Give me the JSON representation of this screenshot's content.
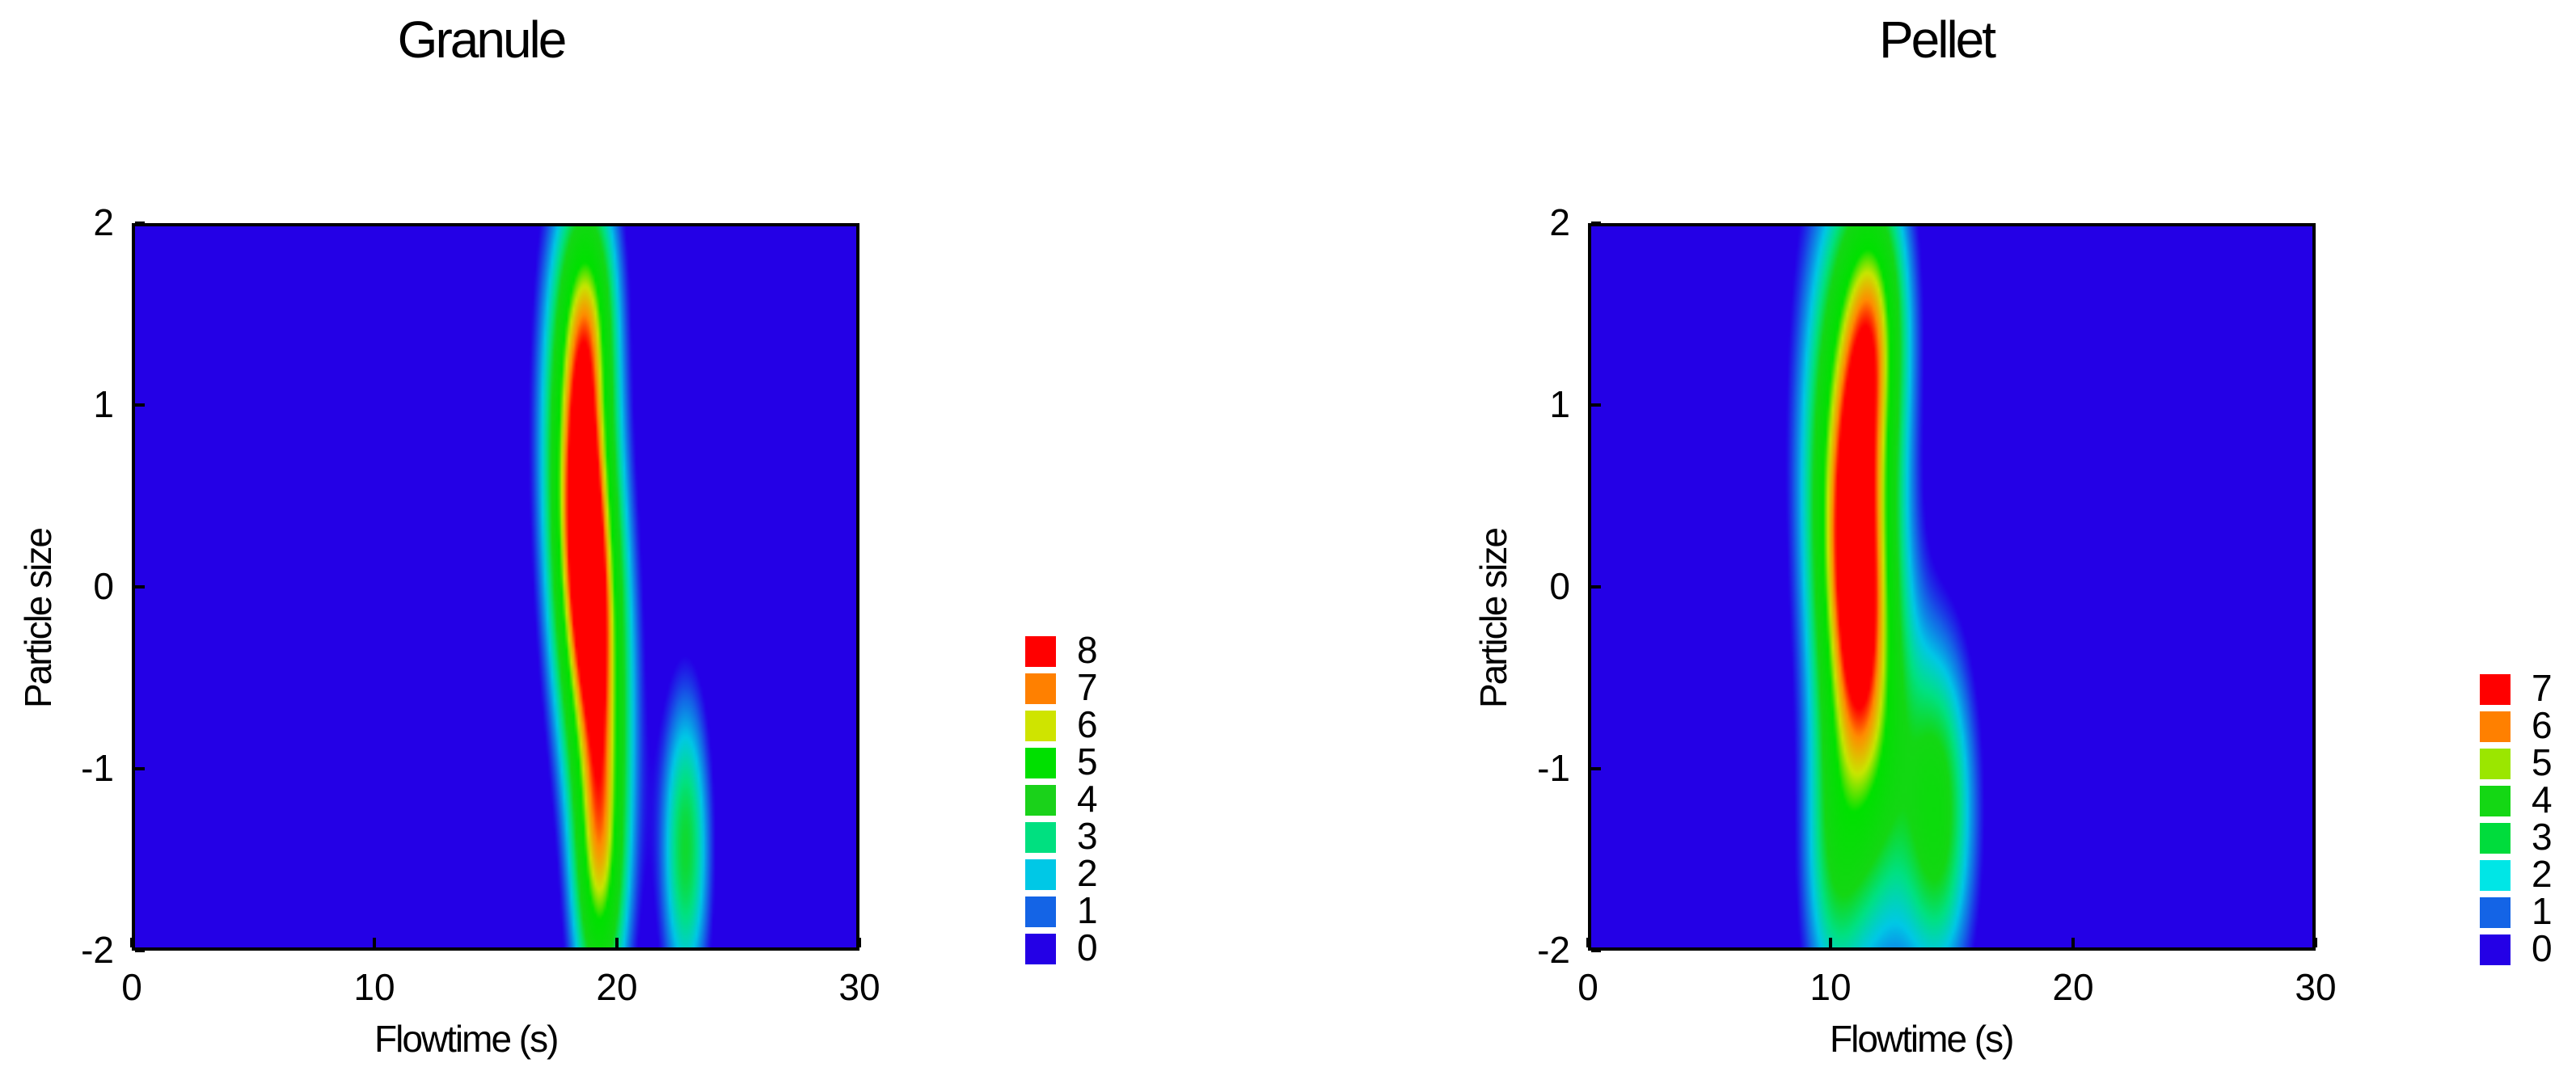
{
  "chart_data": [
    {
      "type": "heatmap",
      "title": "Granule",
      "xlabel": "Flowtime (s)",
      "ylabel": "Particle size",
      "xlim": [
        0,
        30
      ],
      "ylim": [
        -2,
        2
      ],
      "xticks": [
        "0",
        "10",
        "20",
        "30"
      ],
      "yticks": [
        "2",
        "1",
        "0",
        "-1",
        "-2"
      ],
      "legend_placement": "right",
      "legend": [
        {
          "label": "8",
          "color": "#ff0000"
        },
        {
          "label": "7",
          "color": "#ff8000"
        },
        {
          "label": "6",
          "color": "#cfe400"
        },
        {
          "label": "5",
          "color": "#00e000"
        },
        {
          "label": "4",
          "color": "#1ad21a"
        },
        {
          "label": "3",
          "color": "#00e080"
        },
        {
          "label": "2",
          "color": "#00c8e6"
        },
        {
          "label": "1",
          "color": "#1464e6"
        },
        {
          "label": "0",
          "color": "#2400e6"
        }
      ],
      "peaks": [
        {
          "x": 18.8,
          "y": 0.1,
          "sx": 1.0,
          "sy": 0.95,
          "amp": 9.5,
          "tilt": -0.35
        },
        {
          "x": 19.3,
          "y": -1.6,
          "sx": 0.75,
          "sy": 0.6,
          "amp": 4.4
        },
        {
          "x": 18.9,
          "y": 1.55,
          "sx": 0.85,
          "sy": 0.55,
          "amp": 4.0
        },
        {
          "x": 22.9,
          "y": -1.45,
          "sx": 0.7,
          "sy": 0.6,
          "amp": 3.4
        }
      ]
    },
    {
      "type": "heatmap",
      "title": "Pellet",
      "xlabel": "Flowtime (s)",
      "ylabel": "Particle size",
      "xlim": [
        0,
        30
      ],
      "ylim": [
        -2,
        2
      ],
      "xticks": [
        "0",
        "10",
        "20",
        "30"
      ],
      "yticks": [
        "2",
        "1",
        "0",
        "-1",
        "-2"
      ],
      "legend_placement": "right",
      "legend": [
        {
          "label": "7",
          "color": "#ff0000"
        },
        {
          "label": "6",
          "color": "#ff8000"
        },
        {
          "label": "5",
          "color": "#9be600"
        },
        {
          "label": "4",
          "color": "#14d714"
        },
        {
          "label": "3",
          "color": "#00dc3c"
        },
        {
          "label": "2",
          "color": "#00e6e6"
        },
        {
          "label": "1",
          "color": "#1464e6"
        },
        {
          "label": "0",
          "color": "#2400e6"
        }
      ],
      "peaks": [
        {
          "x": 11.0,
          "y": 0.05,
          "sx": 1.25,
          "sy": 1.1,
          "amp": 8.8,
          "tilt": -0.3
        },
        {
          "x": 11.8,
          "y": 1.5,
          "sx": 1.0,
          "sy": 0.6,
          "amp": 4.6
        },
        {
          "x": 10.0,
          "y": -1.6,
          "sx": 0.9,
          "sy": 0.6,
          "amp": 2.2
        },
        {
          "x": 14.4,
          "y": -1.25,
          "sx": 1.05,
          "sy": 0.65,
          "amp": 4.0
        }
      ]
    }
  ]
}
